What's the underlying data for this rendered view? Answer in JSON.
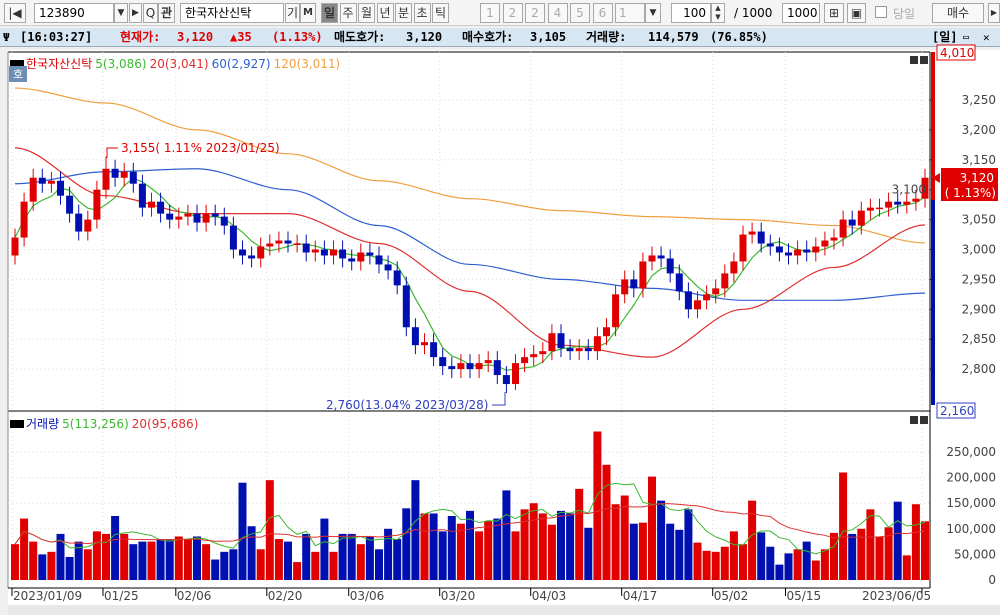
{
  "toolbar": {
    "code": "123890",
    "name": "한국자산신탁",
    "btn_gi": "기",
    "btn_m": "M",
    "btn_search": "Q",
    "btn_gwan": "관",
    "periods": [
      "일",
      "주",
      "월",
      "년",
      "분",
      "초",
      "틱"
    ],
    "active_period": "일",
    "numbers": [
      "1",
      "2",
      "2",
      "4",
      "5",
      "6"
    ],
    "num_select": "1",
    "count": "100",
    "total_label": "/ 1000",
    "total": "1000",
    "today_label": "당일",
    "buy": "매수"
  },
  "info": {
    "time": "[16:03:27]",
    "current_label": "현재가:",
    "current": "3,120",
    "change": "▲35",
    "change_pct": "(1.13%)",
    "ask_label": "매도호가:",
    "ask": "3,120",
    "bid_label": "매수호가:",
    "bid": "3,105",
    "vol_label": "거래량:",
    "vol": "114,579",
    "vol_pct": "(76.85%)",
    "period": "[일]"
  },
  "colors": {
    "up": "#e00000",
    "down": "#0010b0",
    "ma5": "#3cb830",
    "ma20": "#e03030",
    "ma60": "#3060d0",
    "ma120": "#f0a040",
    "vol_neutral": "#60c030"
  },
  "price_legend": {
    "name": "한국자산신탁",
    "ma5": "5(3,086)",
    "ma20": "20(3,041)",
    "ma60": "60(2,927)",
    "ma120": "120(3,011)",
    "side_tab": "호"
  },
  "volume_legend": {
    "name": "거래량",
    "ma5": "5(113,256)",
    "ma20": "20(95,686)"
  },
  "axis_labels": {
    "top": "4,010",
    "bottom": "2,160",
    "current": "3,120",
    "current_pct": "( 1.13%)"
  },
  "annotations": {
    "high": "3,155( 1.11% 2023/01/25)",
    "low": "2,760(13.04% 2023/03/28)"
  },
  "chart_data": [
    {
      "type": "candlestick",
      "ylim": [
        2740,
        3290
      ],
      "yticks": [
        2800,
        2850,
        2900,
        2950,
        3000,
        3050,
        3100,
        3150,
        3200,
        3250
      ],
      "ytick_labels": [
        "2,800",
        "2,850",
        "2,900",
        "2,950",
        "3,000",
        "3,050",
        "3,100",
        "3,150",
        "3,200",
        "3,250"
      ],
      "open": [
        2990,
        3020,
        3080,
        3120,
        3110,
        3115,
        3090,
        3060,
        3030,
        3050,
        3100,
        3135,
        3120,
        3130,
        3110,
        3070,
        3080,
        3060,
        3050,
        3055,
        3060,
        3045,
        3060,
        3055,
        3040,
        3000,
        2990,
        2985,
        3005,
        3010,
        3015,
        3010,
        3010,
        2995,
        3000,
        2990,
        3000,
        2985,
        2980,
        2995,
        2990,
        2975,
        2965,
        2940,
        2870,
        2840,
        2845,
        2820,
        2805,
        2800,
        2810,
        2800,
        2810,
        2815,
        2790,
        2775,
        2810,
        2820,
        2825,
        2830,
        2860,
        2835,
        2830,
        2835,
        2830,
        2855,
        2870,
        2925,
        2950,
        2935,
        2980,
        2990,
        2985,
        2960,
        2930,
        2900,
        2915,
        2925,
        2935,
        2960,
        2980,
        3025,
        3030,
        3010,
        3005,
        2995,
        2990,
        3000,
        2995,
        3005,
        3015,
        3020,
        3050,
        3040,
        3065,
        3070,
        3070,
        3080,
        3075,
        3080,
        3085
      ],
      "high": [
        3035,
        3095,
        3135,
        3135,
        3130,
        3130,
        3105,
        3075,
        3065,
        3115,
        3155,
        3150,
        3145,
        3145,
        3125,
        3095,
        3095,
        3075,
        3070,
        3075,
        3075,
        3075,
        3075,
        3070,
        3055,
        3015,
        3005,
        3020,
        3025,
        3030,
        3030,
        3025,
        3025,
        3015,
        3015,
        3015,
        3015,
        3000,
        3010,
        3010,
        3005,
        2990,
        2980,
        2955,
        2885,
        2860,
        2860,
        2835,
        2820,
        2825,
        2825,
        2825,
        2830,
        2830,
        2805,
        2825,
        2835,
        2840,
        2845,
        2875,
        2875,
        2850,
        2850,
        2850,
        2870,
        2885,
        2940,
        2965,
        2965,
        2995,
        3005,
        3005,
        3000,
        2975,
        2945,
        2930,
        2940,
        2950,
        2975,
        2995,
        3040,
        3045,
        3045,
        3025,
        3020,
        3010,
        3015,
        3015,
        3020,
        3030,
        3035,
        3065,
        3065,
        3080,
        3085,
        3085,
        3095,
        3095,
        3095,
        3100,
        3135
      ],
      "low": [
        2975,
        3005,
        3065,
        3095,
        3095,
        3075,
        3045,
        3015,
        3015,
        3035,
        3085,
        3105,
        3105,
        3095,
        3055,
        3055,
        3045,
        3035,
        3035,
        3040,
        3030,
        3030,
        3040,
        3025,
        2985,
        2975,
        2970,
        2970,
        2990,
        2995,
        2995,
        2995,
        2980,
        2980,
        2975,
        2975,
        2970,
        2965,
        2965,
        2975,
        2960,
        2950,
        2925,
        2855,
        2825,
        2825,
        2805,
        2790,
        2785,
        2785,
        2785,
        2785,
        2795,
        2775,
        2760,
        2765,
        2795,
        2805,
        2810,
        2815,
        2820,
        2815,
        2815,
        2815,
        2815,
        2840,
        2855,
        2910,
        2920,
        2920,
        2965,
        2970,
        2945,
        2915,
        2885,
        2885,
        2900,
        2910,
        2920,
        2945,
        2965,
        3010,
        2995,
        2990,
        2980,
        2975,
        2975,
        2980,
        2980,
        2990,
        3000,
        3005,
        3025,
        3025,
        3050,
        3055,
        3055,
        3060,
        3060,
        3065,
        3070
      ],
      "close": [
        3020,
        3080,
        3120,
        3110,
        3115,
        3090,
        3060,
        3030,
        3050,
        3100,
        3135,
        3120,
        3130,
        3110,
        3070,
        3080,
        3060,
        3050,
        3055,
        3060,
        3045,
        3060,
        3055,
        3040,
        3000,
        2990,
        2985,
        3005,
        3010,
        3015,
        3010,
        3010,
        2995,
        3000,
        2990,
        3000,
        2985,
        2980,
        2995,
        2990,
        2975,
        2965,
        2940,
        2870,
        2840,
        2845,
        2820,
        2805,
        2800,
        2810,
        2800,
        2810,
        2815,
        2790,
        2775,
        2810,
        2820,
        2825,
        2830,
        2860,
        2835,
        2830,
        2835,
        2830,
        2855,
        2870,
        2925,
        2950,
        2935,
        2980,
        2990,
        2985,
        2960,
        2930,
        2900,
        2915,
        2925,
        2935,
        2960,
        2980,
        3025,
        3030,
        3010,
        3005,
        2995,
        2990,
        3000,
        2995,
        3005,
        3015,
        3020,
        3050,
        3040,
        3065,
        3070,
        3070,
        3080,
        3075,
        3080,
        3085,
        3120
      ],
      "ma_keypoints_every_10_bars": {
        "ma20": [
          3170,
          3090,
          3060,
          3060,
          3010,
          2930,
          2840,
          2820,
          2900,
          2970,
          3041
        ],
        "ma60": [
          3110,
          3130,
          3135,
          3100,
          3040,
          2975,
          2950,
          2935,
          2915,
          2915,
          2927
        ],
        "ma120": [
          3270,
          3245,
          3200,
          3160,
          3115,
          3085,
          3065,
          3055,
          3050,
          3040,
          3011
        ]
      }
    },
    {
      "type": "bar",
      "ylim": [
        0,
        310000
      ],
      "yticks": [
        0,
        50000,
        100000,
        150000,
        200000,
        250000
      ],
      "ytick_labels": [
        "0",
        "50,000",
        "100,000",
        "150,000",
        "200,000",
        "250,000"
      ],
      "x_tick_labels": [
        {
          "index": 0,
          "label": "2023/01/09"
        },
        {
          "index": 10,
          "label": "01/25"
        },
        {
          "index": 18,
          "label": "02/06"
        },
        {
          "index": 28,
          "label": "02/20"
        },
        {
          "index": 37,
          "label": "03/06"
        },
        {
          "index": 47,
          "label": "03/20"
        },
        {
          "index": 57,
          "label": "04/03"
        },
        {
          "index": 67,
          "label": "04/17"
        },
        {
          "index": 77,
          "label": "05/02"
        },
        {
          "index": 85,
          "label": "05/15"
        },
        {
          "index": 100,
          "label": "2023/06/05"
        }
      ],
      "values": [
        70000,
        120000,
        75000,
        50000,
        55000,
        90000,
        45000,
        75000,
        60000,
        95000,
        90000,
        125000,
        90000,
        70000,
        75000,
        75000,
        80000,
        80000,
        85000,
        80000,
        85000,
        70000,
        40000,
        55000,
        60000,
        190000,
        105000,
        60000,
        195000,
        80000,
        75000,
        35000,
        90000,
        55000,
        120000,
        55000,
        90000,
        90000,
        70000,
        85000,
        60000,
        100000,
        80000,
        140000,
        195000,
        130000,
        130000,
        95000,
        125000,
        110000,
        135000,
        95000,
        115000,
        120000,
        175000,
        95000,
        138000,
        150000,
        130000,
        108000,
        135000,
        130000,
        178000,
        102000,
        290000,
        225000,
        148000,
        165000,
        110000,
        112000,
        202000,
        155000,
        110000,
        98000,
        138000,
        73000,
        57000,
        55000,
        65000,
        95000,
        70000,
        155000,
        93000,
        65000,
        30000,
        52000,
        60000,
        75000,
        38000,
        60000,
        92000,
        210000,
        90000,
        100000,
        138000,
        85000,
        103000,
        153000,
        48000,
        148000,
        114579
      ]
    }
  ]
}
